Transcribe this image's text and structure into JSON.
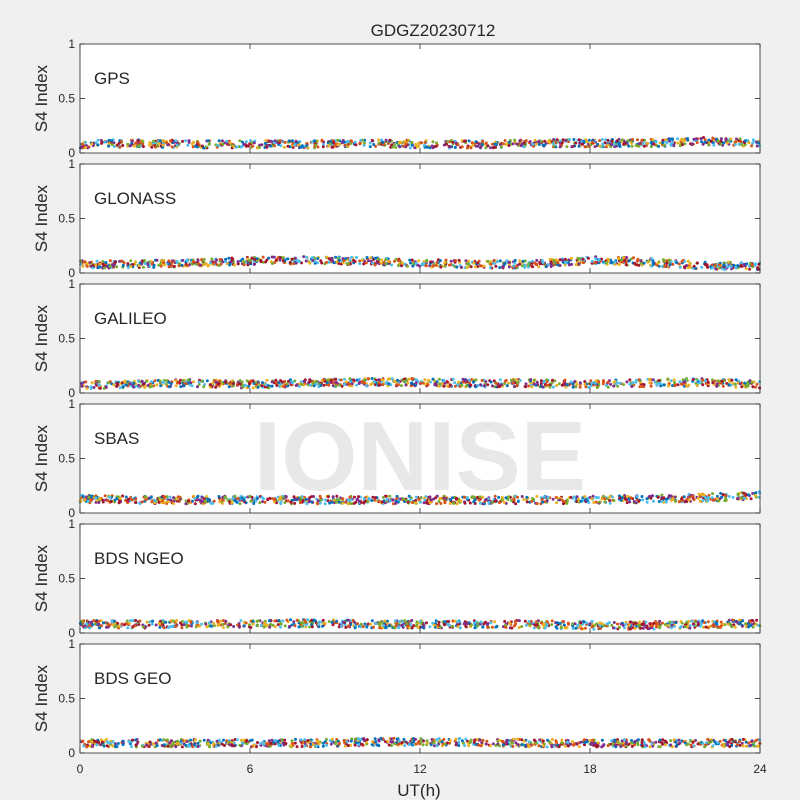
{
  "figure": {
    "title": "GDGZ20230712",
    "xlabel": "UT(h)",
    "watermark": "IONISE"
  },
  "colors": {
    "axes_bg": "#ffffff",
    "figure_bg": "#f0f0f0",
    "axis": "#262626",
    "watermark": "#d9d9d9",
    "series": [
      "#0072BD",
      "#D95319",
      "#EDB120",
      "#7E2F8E",
      "#77AC30",
      "#4DBEEE",
      "#A2142F"
    ]
  },
  "chart_data": [
    {
      "type": "scatter",
      "label": "GPS",
      "ylabel": "S4 Index",
      "xlim": [
        0,
        24
      ],
      "ylim": [
        0,
        1
      ],
      "xticks": [
        0,
        6,
        12,
        18,
        24
      ],
      "yticks": [
        0,
        0.5,
        1
      ],
      "ytick_labels": [
        "0",
        "0.5",
        "1"
      ],
      "series_values": {
        "x": [
          0,
          2,
          4,
          6,
          8,
          10,
          12,
          14,
          16,
          18,
          20,
          22,
          24
        ],
        "mean_s4": [
          0.08,
          0.09,
          0.08,
          0.08,
          0.08,
          0.09,
          0.08,
          0.08,
          0.09,
          0.09,
          0.09,
          0.11,
          0.09
        ]
      }
    },
    {
      "type": "scatter",
      "label": "GLONASS",
      "ylabel": "S4 Index",
      "xlim": [
        0,
        24
      ],
      "ylim": [
        0,
        1
      ],
      "xticks": [
        0,
        6,
        12,
        18,
        24
      ],
      "yticks": [
        0,
        0.5,
        1
      ],
      "ytick_labels": [
        "0",
        "0.5",
        "1"
      ],
      "series_values": {
        "x": [
          0,
          2,
          4,
          6,
          8,
          10,
          12,
          14,
          16,
          18,
          20,
          22,
          24
        ],
        "mean_s4": [
          0.08,
          0.08,
          0.09,
          0.11,
          0.12,
          0.11,
          0.09,
          0.08,
          0.08,
          0.12,
          0.1,
          0.07,
          0.06
        ]
      }
    },
    {
      "type": "scatter",
      "label": "GALILEO",
      "ylabel": "S4 Index",
      "xlim": [
        0,
        24
      ],
      "ylim": [
        0,
        1
      ],
      "xticks": [
        0,
        6,
        12,
        18,
        24
      ],
      "yticks": [
        0,
        0.5,
        1
      ],
      "ytick_labels": [
        "0",
        "0.5",
        "1"
      ],
      "series_values": {
        "x": [
          0,
          2,
          4,
          6,
          8,
          10,
          12,
          14,
          16,
          18,
          20,
          22,
          24
        ],
        "mean_s4": [
          0.07,
          0.08,
          0.09,
          0.08,
          0.09,
          0.1,
          0.1,
          0.09,
          0.09,
          0.08,
          0.09,
          0.1,
          0.08
        ]
      }
    },
    {
      "type": "scatter",
      "label": "SBAS",
      "ylabel": "S4 Index",
      "xlim": [
        0,
        24
      ],
      "ylim": [
        0,
        1
      ],
      "xticks": [
        0,
        6,
        12,
        18,
        24
      ],
      "yticks": [
        0,
        0.5,
        1
      ],
      "ytick_labels": [
        "0",
        "0.5",
        "1"
      ],
      "series_values": {
        "x": [
          0,
          2,
          4,
          6,
          8,
          10,
          12,
          14,
          16,
          18,
          20,
          22,
          24
        ],
        "mean_s4": [
          0.13,
          0.12,
          0.12,
          0.12,
          0.12,
          0.12,
          0.12,
          0.12,
          0.12,
          0.12,
          0.13,
          0.14,
          0.16
        ]
      }
    },
    {
      "type": "scatter",
      "label": "BDS NGEO",
      "ylabel": "S4 Index",
      "xlim": [
        0,
        24
      ],
      "ylim": [
        0,
        1
      ],
      "xticks": [
        0,
        6,
        12,
        18,
        24
      ],
      "yticks": [
        0,
        0.5,
        1
      ],
      "ytick_labels": [
        "0",
        "0.5",
        "1"
      ],
      "series_values": {
        "x": [
          0,
          2,
          4,
          6,
          8,
          10,
          12,
          14,
          16,
          18,
          20,
          22,
          24
        ],
        "mean_s4": [
          0.08,
          0.08,
          0.08,
          0.08,
          0.09,
          0.08,
          0.08,
          0.08,
          0.08,
          0.07,
          0.07,
          0.08,
          0.09
        ]
      }
    },
    {
      "type": "scatter",
      "label": "BDS GEO",
      "ylabel": "S4 Index",
      "xlim": [
        0,
        24
      ],
      "ylim": [
        0,
        1
      ],
      "xticks": [
        0,
        6,
        12,
        18,
        24
      ],
      "yticks": [
        0,
        0.5,
        1
      ],
      "ytick_labels": [
        "0",
        "0.5",
        "1"
      ],
      "series_values": {
        "x": [
          0,
          2,
          4,
          6,
          8,
          10,
          12,
          14,
          16,
          18,
          20,
          22,
          24
        ],
        "mean_s4": [
          0.09,
          0.09,
          0.09,
          0.09,
          0.09,
          0.1,
          0.1,
          0.1,
          0.09,
          0.09,
          0.09,
          0.09,
          0.09
        ]
      }
    }
  ]
}
